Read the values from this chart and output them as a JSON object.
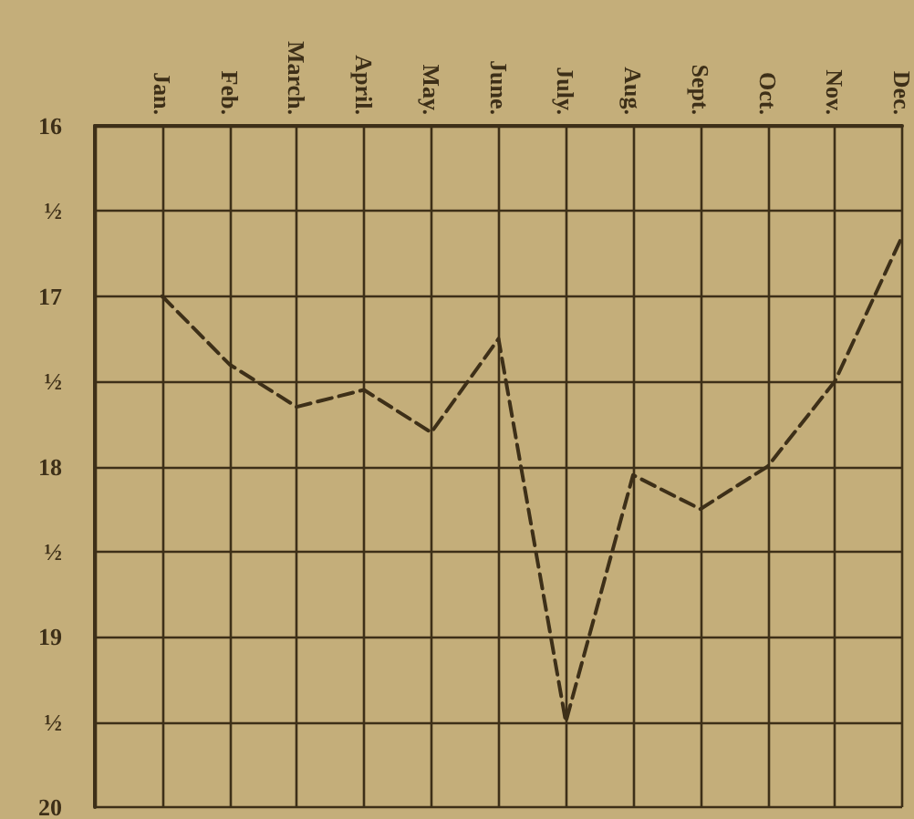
{
  "chart_data": {
    "type": "line",
    "categories": [
      null,
      "Jan.",
      "Feb.",
      "March.",
      "April.",
      "May.",
      "June.",
      "July.",
      "Aug.",
      "Sept.",
      "Oct.",
      "Nov.",
      "Dec."
    ],
    "series": [
      {
        "color": "#3d2f18",
        "values": [
          null,
          17.0,
          17.4,
          17.65,
          17.55,
          17.8,
          17.25,
          19.5,
          18.05,
          18.25,
          18.0,
          17.5,
          16.65
        ]
      }
    ],
    "ylim": [
      20,
      16
    ],
    "yticks": [
      16,
      {
        "value": 16.5,
        "label": "½"
      },
      17,
      {
        "value": 17.5,
        "label": "½"
      },
      18,
      {
        "value": 18.5,
        "label": "½"
      },
      19,
      {
        "value": 19.5,
        "label": "½"
      },
      20
    ],
    "grid": true,
    "marker": "none",
    "line_style": "dashed"
  }
}
